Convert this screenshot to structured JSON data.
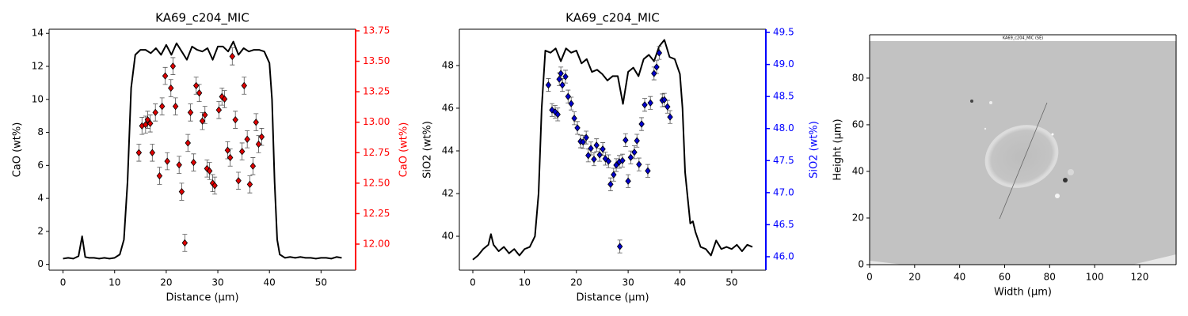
{
  "chart_data": [
    {
      "type": "line_scatter",
      "title": "KA69_c204_MIC",
      "xlabel": "Distance (µm)",
      "ylabel": "CaO (wt%)",
      "y2label": "CaO (wt%)",
      "y2color": "#ff0000",
      "xlim": [
        -2.7,
        56.7
      ],
      "ylim": [
        -0.35,
        14.25
      ],
      "y2lim": [
        11.786,
        13.763
      ],
      "xticks": [
        0,
        10,
        20,
        30,
        40,
        50
      ],
      "yticks": [
        0,
        2,
        4,
        6,
        8,
        10,
        12,
        14
      ],
      "y2ticks": [
        {
          "value": 12,
          "label": "12.00"
        },
        {
          "value": 12.25,
          "label": "12.25"
        },
        {
          "value": 12.5,
          "label": "12.50"
        },
        {
          "value": 12.75,
          "label": "12.75"
        },
        {
          "value": 13,
          "label": "13.00"
        },
        {
          "value": 13.25,
          "label": "13.25"
        },
        {
          "value": 13.5,
          "label": "13.50"
        },
        {
          "value": 13.75,
          "label": "13.75"
        }
      ],
      "line": {
        "color": "#000000",
        "x": [
          0,
          1,
          2,
          3,
          3.7,
          4.3,
          5,
          6,
          7,
          8,
          9,
          10,
          11,
          11.8,
          12.5,
          13.2,
          14,
          15,
          16,
          17,
          18,
          19,
          20,
          21,
          22,
          23,
          24,
          25,
          26,
          27,
          28,
          29,
          30,
          31,
          32,
          33,
          34,
          35,
          36,
          37,
          38,
          39,
          40,
          40.5,
          41,
          41.5,
          42,
          43,
          44,
          45,
          46,
          47,
          48,
          49,
          50,
          51,
          52,
          53,
          54
        ],
        "values": [
          0.35,
          0.4,
          0.35,
          0.5,
          1.7,
          0.45,
          0.4,
          0.4,
          0.35,
          0.4,
          0.35,
          0.4,
          0.6,
          1.5,
          5,
          10.7,
          12.7,
          13.0,
          13.0,
          12.8,
          13.1,
          12.7,
          13.3,
          12.7,
          13.4,
          12.9,
          12.4,
          13.2,
          13.0,
          12.9,
          13.1,
          12.4,
          13.2,
          13.2,
          12.9,
          13.5,
          12.7,
          13.1,
          12.9,
          13.0,
          13.0,
          12.9,
          12.2,
          10,
          5,
          1.5,
          0.6,
          0.4,
          0.45,
          0.4,
          0.45,
          0.4,
          0.4,
          0.35,
          0.4,
          0.4,
          0.35,
          0.45,
          0.4
        ]
      },
      "points": {
        "color": "#e00000",
        "axis": "y2",
        "x": [
          14.7,
          15.3,
          16.0,
          16.4,
          16.9,
          17.3,
          17.9,
          18.7,
          19.2,
          19.8,
          20.2,
          20.9,
          21.3,
          21.8,
          22.5,
          23.0,
          23.6,
          24.2,
          24.7,
          25.3,
          25.8,
          26.4,
          27.0,
          27.5,
          27.9,
          28.4,
          29.0,
          29.4,
          30.2,
          30.8,
          31.3,
          31.9,
          32.4,
          32.8,
          33.4,
          34.0,
          34.7,
          35.1,
          35.7,
          36.2,
          36.8,
          37.4,
          37.9,
          38.5
        ],
        "values": [
          12.75,
          12.97,
          12.98,
          13.02,
          12.99,
          12.75,
          13.08,
          12.56,
          13.13,
          13.38,
          12.68,
          13.28,
          13.46,
          13.13,
          12.65,
          12.43,
          12.01,
          12.83,
          13.08,
          12.67,
          13.3,
          13.24,
          13.01,
          13.06,
          12.62,
          12.6,
          12.5,
          12.48,
          13.1,
          13.21,
          13.19,
          12.77,
          12.71,
          13.54,
          13.02,
          12.52,
          12.76,
          13.3,
          12.86,
          12.49,
          12.64,
          13.0,
          12.82,
          12.88
        ],
        "errors": [
          0.07,
          0.07,
          0.07,
          0.07,
          0.07,
          0.07,
          0.07,
          0.07,
          0.07,
          0.07,
          0.07,
          0.07,
          0.07,
          0.07,
          0.07,
          0.07,
          0.07,
          0.07,
          0.07,
          0.07,
          0.07,
          0.07,
          0.07,
          0.07,
          0.07,
          0.07,
          0.07,
          0.07,
          0.07,
          0.07,
          0.07,
          0.07,
          0.07,
          0.07,
          0.07,
          0.07,
          0.07,
          0.07,
          0.07,
          0.07,
          0.07,
          0.07,
          0.07,
          0.07
        ]
      }
    },
    {
      "type": "line_scatter",
      "title": "KA69_c204_MIC",
      "xlabel": "Distance (µm)",
      "ylabel": "SiO2 (wt%)",
      "y2label": "SiO2 (wt%)",
      "y2color": "#0000ff",
      "xlim": [
        -2.6,
        56.6
      ],
      "ylim": [
        38.41,
        49.7
      ],
      "y2lim": [
        45.79,
        49.55
      ],
      "xticks": [
        0,
        10,
        20,
        30,
        40,
        50
      ],
      "yticks": [
        40,
        42,
        44,
        46,
        48
      ],
      "y2ticks": [
        {
          "value": 46,
          "label": "46.0"
        },
        46.5,
        {
          "value": 47,
          "label": "47.0"
        },
        47.5,
        {
          "value": 48,
          "label": "48.0"
        },
        48.5,
        {
          "value": 49,
          "label": "49.0"
        },
        49.5
      ],
      "line": {
        "color": "#000000",
        "x": [
          0,
          1,
          2,
          3,
          3.5,
          4,
          5,
          6,
          7,
          8,
          9,
          10,
          11,
          12,
          12.7,
          13.3,
          14,
          15,
          16,
          17,
          18,
          19,
          20,
          21,
          22,
          23,
          24,
          25,
          26,
          27,
          28,
          29,
          30,
          31,
          32,
          33,
          34,
          35,
          36,
          37,
          38,
          39,
          40,
          40.5,
          41,
          42,
          42.5,
          43,
          44,
          45,
          46,
          47,
          48,
          49,
          50,
          51,
          52,
          53,
          54
        ],
        "values": [
          38.9,
          39.1,
          39.4,
          39.6,
          40.1,
          39.6,
          39.3,
          39.5,
          39.2,
          39.4,
          39.1,
          39.4,
          39.5,
          40,
          42,
          46,
          48.7,
          48.6,
          48.8,
          48.2,
          48.8,
          48.6,
          48.7,
          48.1,
          48.3,
          47.7,
          47.8,
          47.6,
          47.3,
          47.5,
          47.5,
          46.2,
          47.7,
          47.9,
          47.5,
          48.3,
          48.5,
          48.2,
          48.9,
          49.2,
          48.4,
          48.3,
          47.6,
          46,
          43,
          40.6,
          40.7,
          40.2,
          39.5,
          39.4,
          39.1,
          39.8,
          39.4,
          39.5,
          39.4,
          39.6,
          39.3,
          39.6,
          39.5
        ]
      },
      "points": {
        "color": "#0000cc",
        "axis": "y2",
        "x": [
          14.6,
          15.3,
          15.9,
          16.4,
          16.7,
          17.0,
          17.3,
          17.9,
          18.4,
          19.0,
          19.6,
          20.2,
          20.8,
          21.3,
          21.9,
          22.3,
          22.8,
          23.4,
          23.9,
          24.5,
          25.1,
          25.6,
          26.2,
          26.6,
          27.2,
          27.7,
          28.3,
          28.9,
          29.5,
          30.0,
          30.5,
          31.2,
          31.7,
          32.1,
          32.6,
          33.2,
          33.8,
          34.3,
          35.0,
          35.5,
          36.0,
          36.6,
          37.0,
          37.6,
          38.1,
          28.4
        ],
        "values": [
          48.68,
          48.29,
          48.26,
          48.22,
          48.77,
          48.86,
          48.68,
          48.81,
          48.5,
          48.39,
          48.16,
          48.01,
          47.8,
          47.79,
          47.86,
          47.58,
          47.69,
          47.52,
          47.74,
          47.59,
          47.68,
          47.53,
          47.49,
          47.13,
          47.28,
          47.43,
          47.48,
          47.5,
          47.82,
          47.18,
          47.55,
          47.63,
          47.81,
          47.44,
          48.07,
          48.37,
          47.34,
          48.4,
          48.86,
          48.96,
          49.18,
          48.44,
          48.45,
          48.34,
          48.18,
          46.16
        ],
        "errors": [
          0.1,
          0.1,
          0.1,
          0.1,
          0.1,
          0.1,
          0.1,
          0.1,
          0.1,
          0.1,
          0.1,
          0.1,
          0.1,
          0.1,
          0.1,
          0.1,
          0.1,
          0.1,
          0.1,
          0.1,
          0.1,
          0.1,
          0.1,
          0.1,
          0.1,
          0.1,
          0.1,
          0.1,
          0.1,
          0.1,
          0.1,
          0.1,
          0.1,
          0.1,
          0.1,
          0.1,
          0.1,
          0.1,
          0.1,
          0.1,
          0.1,
          0.1,
          0.1,
          0.1,
          0.1,
          0.1
        ]
      }
    },
    {
      "type": "image",
      "image_title": "KA69_c204_MIC (SE)",
      "xlabel": "Width (µm)",
      "ylabel": "Height (µm)",
      "xlim": [
        0,
        136.2
      ],
      "ylim": [
        0,
        98.6
      ],
      "xticks": [
        0,
        20,
        40,
        60,
        80,
        100,
        120
      ],
      "yticks": [
        0,
        20,
        40,
        60,
        80
      ]
    }
  ]
}
